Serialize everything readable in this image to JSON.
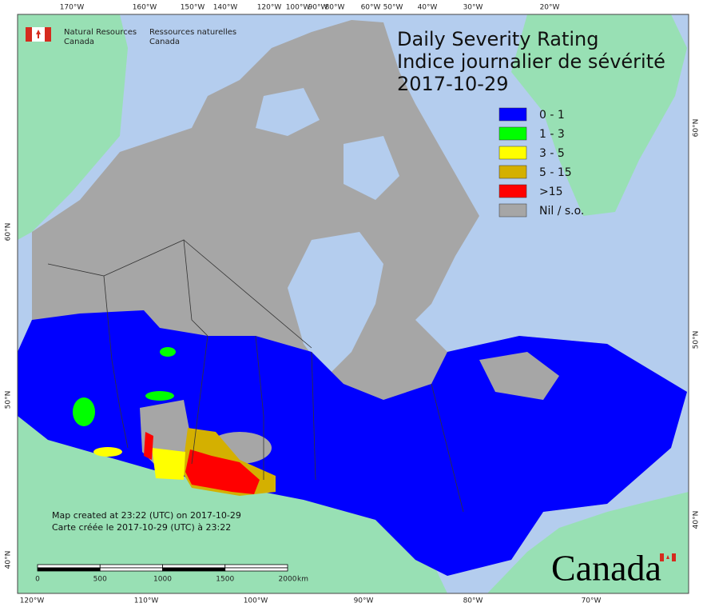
{
  "header": {
    "agency_en": [
      "Natural Resources",
      "Canada"
    ],
    "agency_fr": [
      "Ressources naturelles",
      "Canada"
    ]
  },
  "title": {
    "lines": [
      "Daily Severity Rating",
      "Indice journalier de sévérité",
      "2017-10-29"
    ]
  },
  "legend": [
    {
      "label": "0 - 1",
      "color": "#0000ff"
    },
    {
      "label": "1 - 3",
      "color": "#00ff00"
    },
    {
      "label": "3 - 5",
      "color": "#ffff00"
    },
    {
      "label": "5 - 15",
      "color": "#d4b000"
    },
    {
      "label": ">15",
      "color": "#ff0000"
    },
    {
      "label": "Nil / s.o.",
      "color": "#a6a6a6"
    }
  ],
  "graticule": {
    "top": [
      "170°W",
      "160°W",
      "150°W",
      "140°W",
      "120°W",
      "100°W",
      "90°W",
      "80°W",
      "60°W",
      "50°W",
      "40°W",
      "30°W",
      "20°W"
    ],
    "bottom": [
      "120°W",
      "110°W",
      "100°W",
      "90°W",
      "80°W",
      "70°W"
    ],
    "left": [
      "60°N",
      "50°N",
      "40°N"
    ],
    "right": [
      "60°N",
      "50°N",
      "40°N"
    ]
  },
  "notes": [
    "Map created at 23:22 (UTC) on 2017-10-29",
    "Carte créée le 2017-10-29 (UTC) à 23:22"
  ],
  "scale_bar": {
    "labels": [
      "0",
      "500",
      "1000",
      "1500",
      "2000"
    ],
    "unit": "km"
  },
  "wordmark": "Canada"
}
